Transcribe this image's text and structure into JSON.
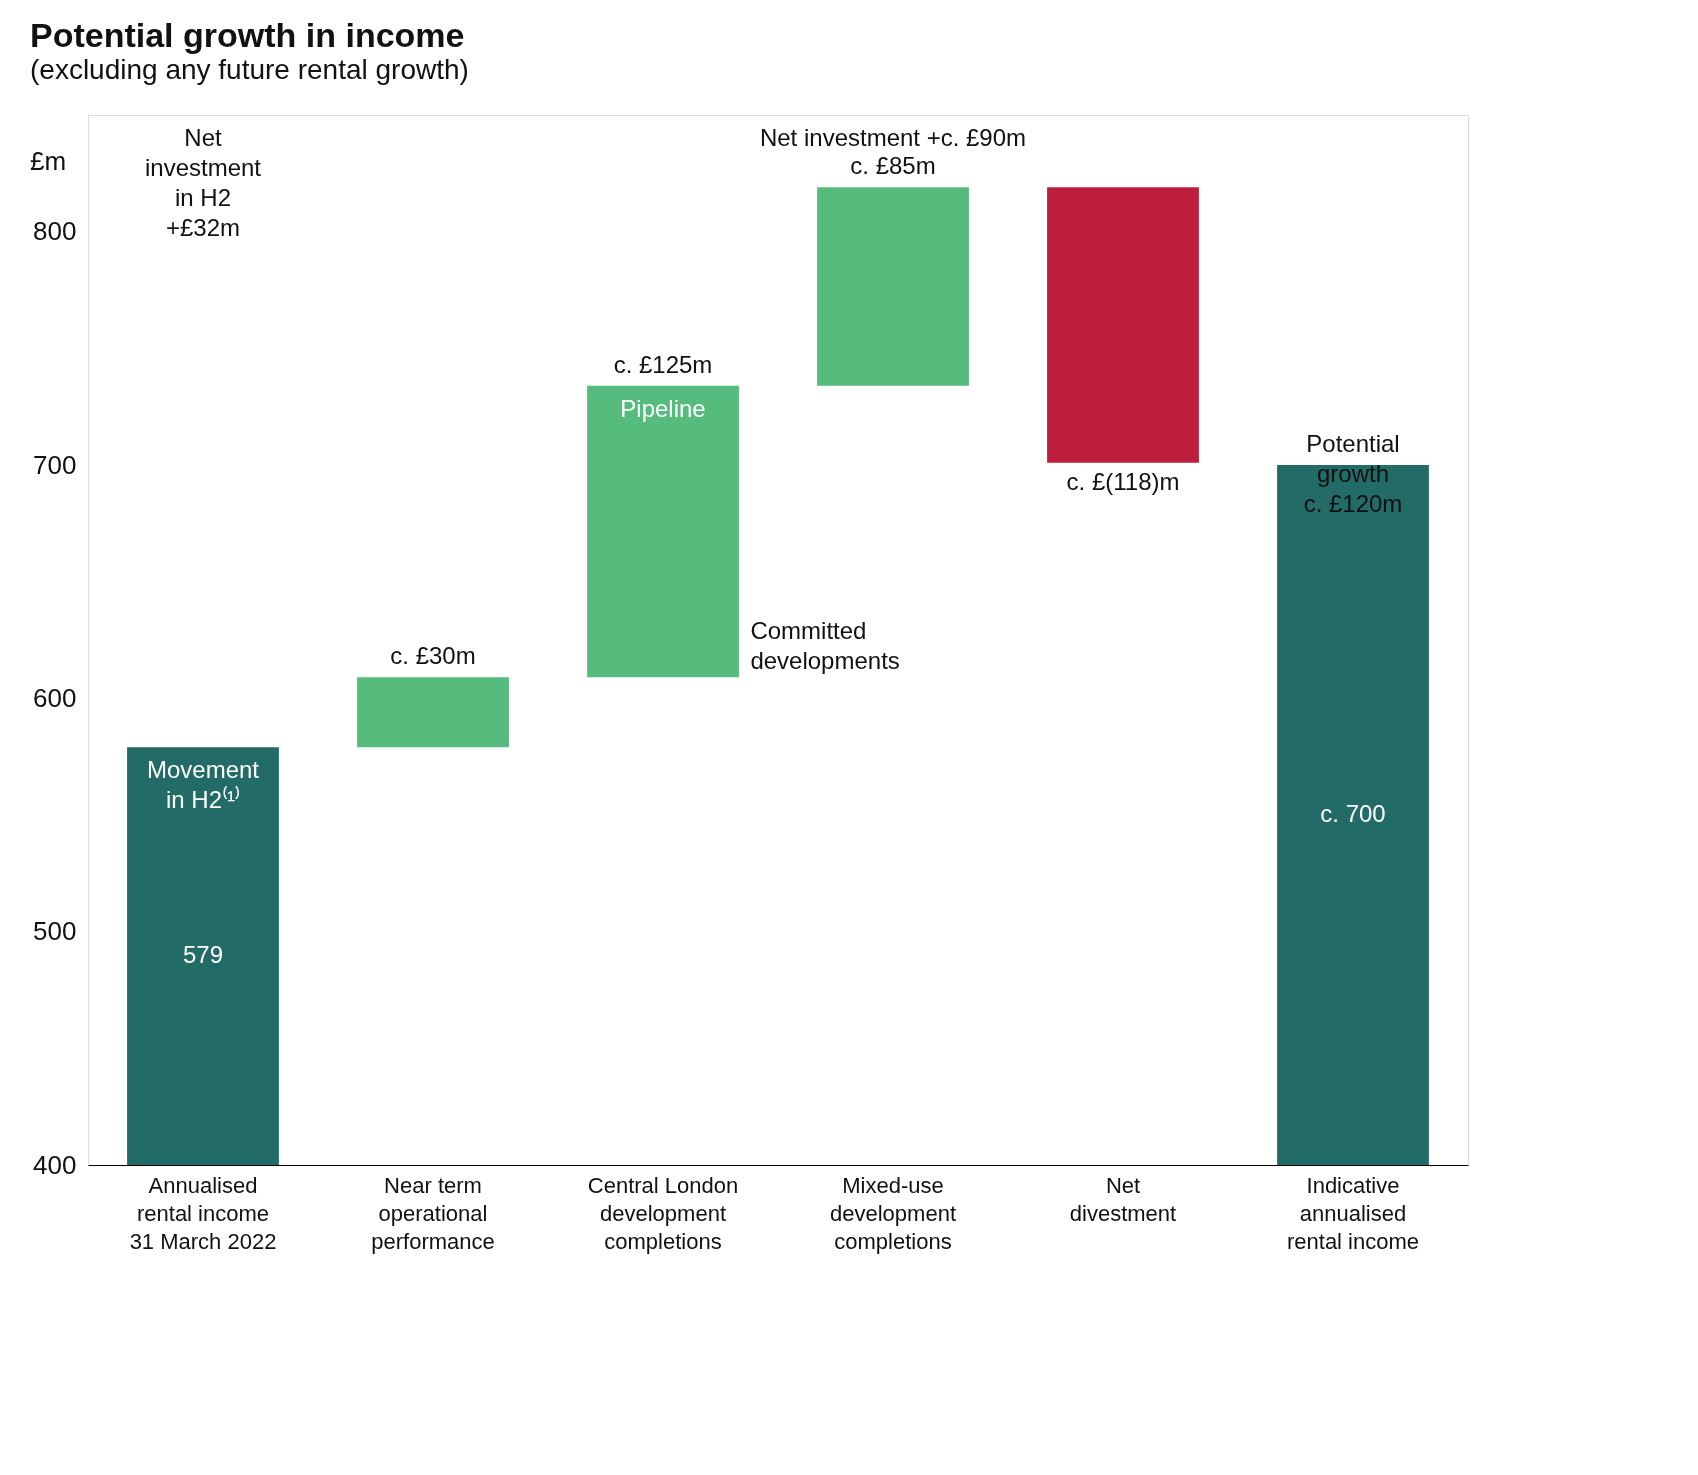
{
  "chart_data": {
    "type": "bar",
    "title": "Potential growth in income",
    "subtitle": "(excluding any future rental growth)",
    "ylabel": "£m",
    "categories": [
      "Annualised\nrental income\n31 March 2022",
      "Near term\noperational\nperformance",
      "Central London\ndevelopment\ncompletions",
      "Mixed-use\ndevelopment\ncompletions",
      "Net\ndivestment",
      "Indicative\nannualised\nrental income"
    ],
    "base": [
      0,
      579,
      609,
      734,
      819,
      0
    ],
    "values": [
      579,
      30,
      125,
      85,
      -118,
      700
    ],
    "colors": [
      "#226b66",
      "#55bc7e",
      "#55bc7e",
      "#55bc7e",
      "#be1e3c",
      "#226b66"
    ],
    "value_labels": [
      "579",
      "c. £30m",
      "c. £125m",
      "c. £85m",
      "c. £(118)m",
      "c. 700"
    ],
    "annotations": [
      "Net\ninvestment\nin H2\n+£32m",
      "Net investment +c. £90m",
      "Committed\ndevelopments",
      {
        "text": "Movement\nin H2⁽¹⁾",
        "x": "Annualised\nrental income\n31 March 2022",
        "y": 579
      },
      {
        "text": "Pipeline",
        "x": "Central London\ndevelopment\ncompletions",
        "y": 734
      },
      {
        "text": "Potential\ngrowth\nc. £120m",
        "x": "Indicative\nannualised\nrental income",
        "y": 700
      }
    ],
    "ylim": [
      400,
      850
    ],
    "yticks": [
      400,
      500,
      600,
      700,
      800
    ],
    "grid": false
  }
}
